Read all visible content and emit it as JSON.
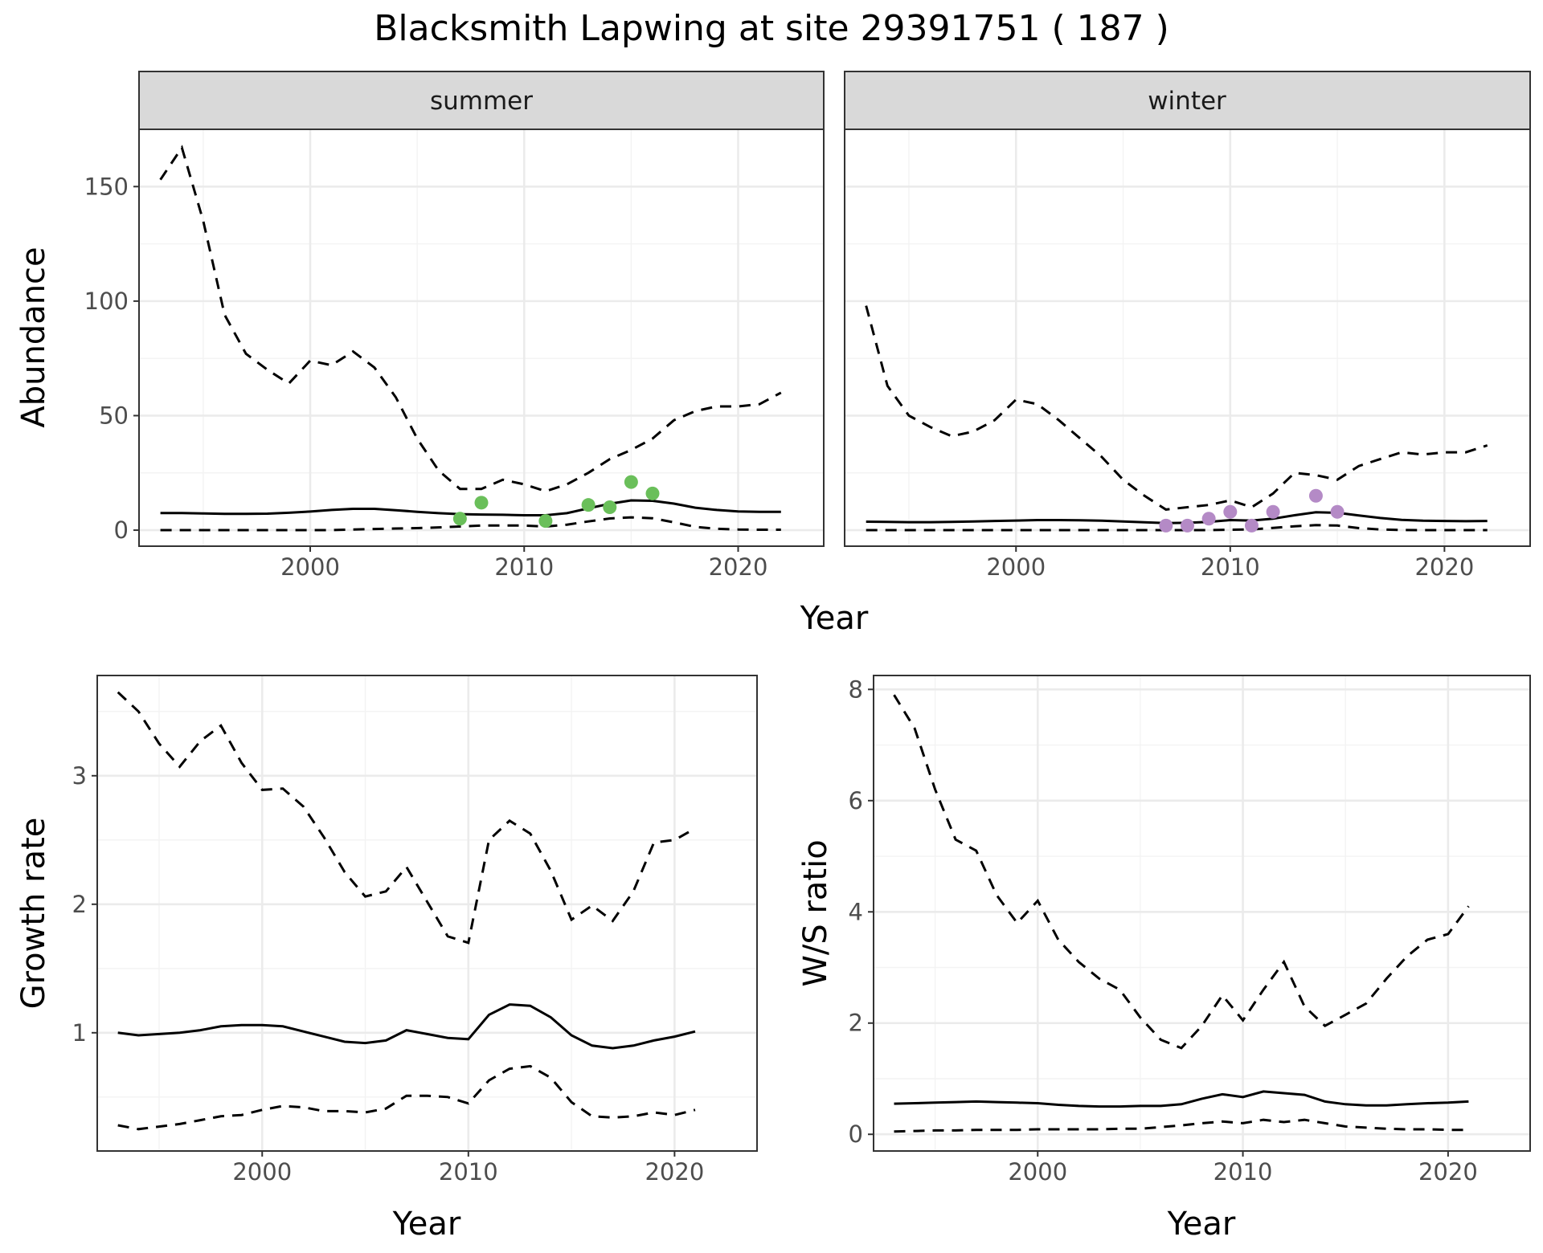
{
  "title": "Blacksmith Lapwing at site 29391751 ( 187 )",
  "colors": {
    "summer_points": "#6abf5a",
    "winter_points": "#b48ac6",
    "lines": "#000000",
    "strip_bg": "#d9d9d9"
  },
  "chart_data": [
    {
      "id": "abundance",
      "type": "line",
      "facets": [
        "summer",
        "winter"
      ],
      "xlabel": "Year",
      "ylabel": "Abundance",
      "xlim": [
        1992,
        2024
      ],
      "ylim": [
        -7,
        175
      ],
      "xticks": [
        2000,
        2010,
        2020
      ],
      "yticks": [
        0,
        50,
        100,
        150
      ],
      "grid": true,
      "panels": [
        {
          "facet": "summer",
          "point_color": "#6abf5a",
          "x": [
            1993,
            1994,
            1995,
            1996,
            1997,
            1998,
            1999,
            2000,
            2001,
            2002,
            2003,
            2004,
            2005,
            2006,
            2007,
            2008,
            2009,
            2010,
            2011,
            2012,
            2013,
            2014,
            2015,
            2016,
            2017,
            2018,
            2019,
            2020,
            2021,
            2022
          ],
          "mean": [
            7.5,
            7.5,
            7.3,
            7.1,
            7.1,
            7.2,
            7.6,
            8.1,
            8.8,
            9.3,
            9.3,
            8.7,
            8,
            7.4,
            7,
            6.8,
            6.7,
            6.5,
            6.5,
            7.4,
            9.5,
            11.5,
            13,
            12.8,
            11.6,
            9.8,
            8.8,
            8.2,
            8,
            8
          ],
          "upper": [
            153,
            167,
            135,
            94,
            77,
            70,
            64,
            74,
            72,
            78,
            71,
            58,
            40,
            26,
            18,
            18,
            22,
            20,
            17,
            20,
            25,
            31,
            35,
            40,
            48,
            52,
            54,
            54,
            55,
            60
          ],
          "lower": [
            0,
            0,
            0,
            0,
            0,
            0,
            0,
            0,
            0,
            0.3,
            0.5,
            0.7,
            0.9,
            1.2,
            1.6,
            2,
            2,
            2,
            1.6,
            2.4,
            3.8,
            5.1,
            5.6,
            5.2,
            3.4,
            1.4,
            0.6,
            0.3,
            0.2,
            0.2
          ],
          "points": {
            "x": [
              2007,
              2008,
              2011,
              2013,
              2014,
              2015,
              2016
            ],
            "y": [
              5,
              12,
              4,
              11,
              10,
              21,
              16
            ]
          }
        },
        {
          "facet": "winter",
          "point_color": "#b48ac6",
          "x": [
            1993,
            1994,
            1995,
            1996,
            1997,
            1998,
            1999,
            2000,
            2001,
            2002,
            2003,
            2004,
            2005,
            2006,
            2007,
            2008,
            2009,
            2010,
            2011,
            2012,
            2013,
            2014,
            2015,
            2016,
            2017,
            2018,
            2019,
            2020,
            2021,
            2022
          ],
          "mean": [
            3.7,
            3.6,
            3.5,
            3.5,
            3.6,
            3.8,
            4,
            4.2,
            4.4,
            4.4,
            4.3,
            4.1,
            3.8,
            3.4,
            3.1,
            3.2,
            3.6,
            4.4,
            4.2,
            5,
            6.5,
            7.8,
            7.6,
            6.4,
            5.3,
            4.5,
            4.1,
            4,
            3.9,
            4
          ],
          "upper": [
            98,
            63,
            50,
            45,
            41,
            43,
            48,
            57,
            55,
            48,
            40,
            32,
            22,
            15,
            9,
            10,
            11,
            13,
            10,
            16,
            25,
            24,
            22,
            28,
            31,
            34,
            33,
            34,
            34,
            37
          ],
          "lower": [
            0,
            0,
            0,
            0,
            0,
            0,
            0,
            0,
            0,
            0,
            0,
            0,
            0,
            0,
            0,
            0,
            0,
            0.2,
            0.3,
            1,
            1.7,
            2.2,
            2,
            0.9,
            0.3,
            0.1,
            0,
            0,
            0,
            0
          ],
          "points": {
            "x": [
              2007,
              2008,
              2009,
              2010,
              2011,
              2012,
              2014,
              2015
            ],
            "y": [
              2,
              2,
              5,
              8,
              2,
              8,
              15,
              8
            ]
          }
        }
      ]
    },
    {
      "id": "growth",
      "type": "line",
      "xlabel": "Year",
      "ylabel": "Growth rate",
      "xlim": [
        1992,
        2024
      ],
      "ylim": [
        0.08,
        3.78
      ],
      "xticks": [
        2000,
        2010,
        2020
      ],
      "yticks": [
        1,
        2,
        3
      ],
      "grid": true,
      "x": [
        1993,
        1994,
        1995,
        1996,
        1997,
        1998,
        1999,
        2000,
        2001,
        2002,
        2003,
        2004,
        2005,
        2006,
        2007,
        2008,
        2009,
        2010,
        2011,
        2012,
        2013,
        2014,
        2015,
        2016,
        2017,
        2018,
        2019,
        2020,
        2021
      ],
      "mean": [
        1,
        0.98,
        0.99,
        1,
        1.02,
        1.05,
        1.06,
        1.06,
        1.05,
        1.01,
        0.97,
        0.93,
        0.92,
        0.94,
        1.02,
        0.99,
        0.96,
        0.95,
        1.14,
        1.22,
        1.21,
        1.12,
        0.98,
        0.9,
        0.88,
        0.9,
        0.94,
        0.97,
        1.01
      ],
      "upper": [
        3.65,
        3.5,
        3.25,
        3.07,
        3.27,
        3.39,
        3.1,
        2.89,
        2.9,
        2.76,
        2.52,
        2.25,
        2.06,
        2.1,
        2.29,
        2.02,
        1.75,
        1.7,
        2.5,
        2.65,
        2.55,
        2.26,
        1.88,
        1.99,
        1.87,
        2.1,
        2.48,
        2.5,
        2.59
      ],
      "lower": [
        0.28,
        0.25,
        0.27,
        0.29,
        0.32,
        0.35,
        0.36,
        0.4,
        0.43,
        0.42,
        0.39,
        0.39,
        0.38,
        0.41,
        0.51,
        0.51,
        0.5,
        0.45,
        0.63,
        0.72,
        0.74,
        0.65,
        0.46,
        0.35,
        0.34,
        0.35,
        0.38,
        0.36,
        0.4
      ]
    },
    {
      "id": "ratio",
      "type": "line",
      "xlabel": "Year",
      "ylabel": "W/S ratio",
      "xlim": [
        1992,
        2024
      ],
      "ylim": [
        -0.3,
        8.25
      ],
      "xticks": [
        2000,
        2010,
        2020
      ],
      "yticks": [
        0,
        2,
        4,
        6,
        8
      ],
      "grid": true,
      "x": [
        1993,
        1994,
        1995,
        1996,
        1997,
        1998,
        1999,
        2000,
        2001,
        2002,
        2003,
        2004,
        2005,
        2006,
        2007,
        2008,
        2009,
        2010,
        2011,
        2012,
        2013,
        2014,
        2015,
        2016,
        2017,
        2018,
        2019,
        2020,
        2021
      ],
      "mean": [
        0.55,
        0.56,
        0.57,
        0.58,
        0.59,
        0.58,
        0.57,
        0.56,
        0.53,
        0.51,
        0.5,
        0.5,
        0.51,
        0.51,
        0.54,
        0.64,
        0.72,
        0.67,
        0.77,
        0.74,
        0.71,
        0.59,
        0.54,
        0.52,
        0.52,
        0.54,
        0.56,
        0.57,
        0.59
      ],
      "upper": [
        7.9,
        7.3,
        6.2,
        5.3,
        5.1,
        4.3,
        3.8,
        4.2,
        3.5,
        3.1,
        2.8,
        2.6,
        2.1,
        1.7,
        1.55,
        1.95,
        2.5,
        2.05,
        2.6,
        3.1,
        2.3,
        1.95,
        2.15,
        2.35,
        2.8,
        3.2,
        3.5,
        3.6,
        4.1
      ],
      "lower": [
        0.05,
        0.06,
        0.07,
        0.07,
        0.08,
        0.08,
        0.08,
        0.09,
        0.09,
        0.09,
        0.09,
        0.1,
        0.1,
        0.13,
        0.16,
        0.2,
        0.23,
        0.2,
        0.26,
        0.22,
        0.26,
        0.2,
        0.14,
        0.12,
        0.1,
        0.09,
        0.09,
        0.08,
        0.08
      ]
    }
  ]
}
